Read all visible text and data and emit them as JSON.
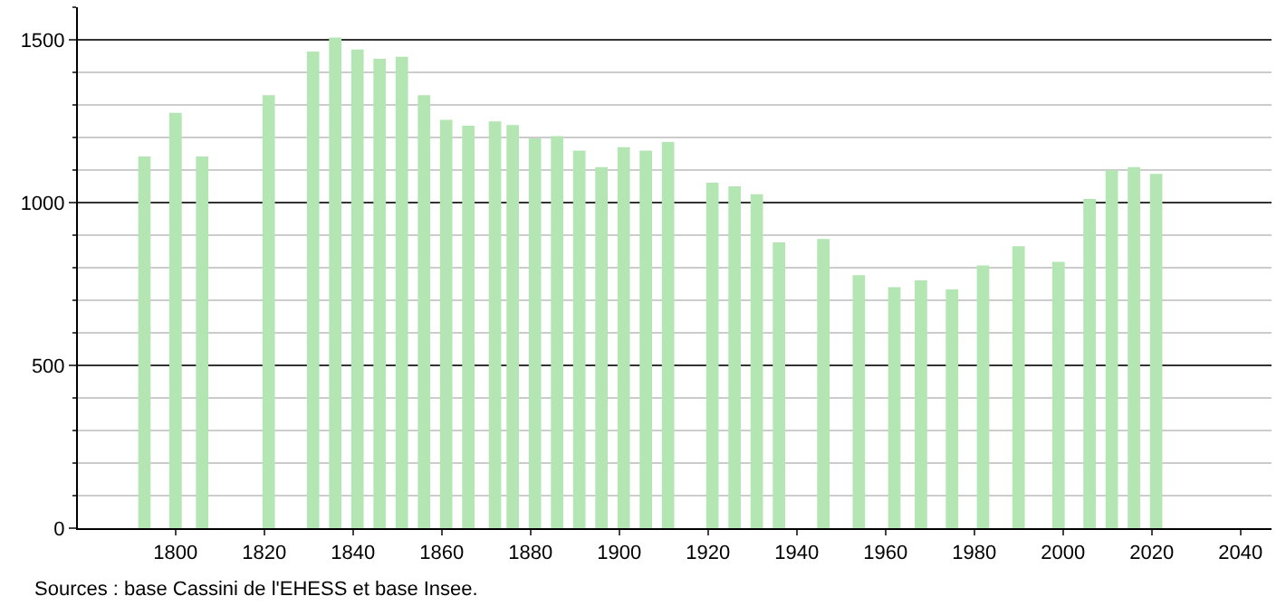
{
  "chart_data": {
    "type": "bar",
    "x": [
      1793,
      1800,
      1806,
      1821,
      1831,
      1836,
      1841,
      1846,
      1851,
      1856,
      1861,
      1866,
      1872,
      1876,
      1881,
      1886,
      1891,
      1896,
      1901,
      1906,
      1911,
      1921,
      1926,
      1931,
      1936,
      1946,
      1954,
      1962,
      1968,
      1975,
      1982,
      1990,
      1999,
      2006,
      2011,
      2016,
      2021
    ],
    "values": [
      1142,
      1276,
      1142,
      1330,
      1464,
      1507,
      1470,
      1442,
      1448,
      1330,
      1254,
      1236,
      1249,
      1238,
      1197,
      1204,
      1160,
      1109,
      1170,
      1160,
      1186,
      1061,
      1050,
      1026,
      878,
      888,
      777,
      740,
      761,
      733,
      807,
      866,
      818,
      1011,
      1099,
      1109,
      1088
    ],
    "color": "#b3e6b3",
    "xlim": [
      1778,
      2047
    ],
    "xticks": [
      1800,
      1820,
      1840,
      1860,
      1880,
      1900,
      1920,
      1940,
      1960,
      1980,
      2000,
      2020,
      2040
    ],
    "ylim": [
      0,
      1600
    ],
    "yticks": [
      0,
      500,
      1000,
      1500
    ],
    "grid": "y",
    "annotations": [
      "Sources : base Cassini de l'EHESS et base Insee."
    ]
  }
}
